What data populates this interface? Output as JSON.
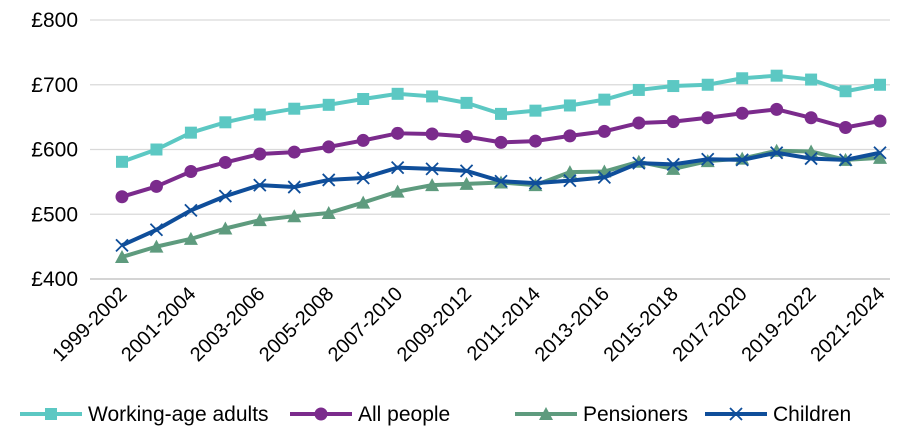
{
  "chart_data": {
    "type": "line",
    "title": "",
    "xlabel": "",
    "ylabel": "",
    "ylim": [
      400,
      800
    ],
    "yticks": [
      "£400",
      "£500",
      "£600",
      "£700",
      "£800"
    ],
    "grid": true,
    "legend_position": "bottom",
    "x": [
      "1999-2002",
      "2000-2003",
      "2001-2004",
      "2002-2005",
      "2003-2006",
      "2004-2007",
      "2005-2008",
      "2006-2009",
      "2007-2010",
      "2008-2011",
      "2009-2012",
      "2010-2013",
      "2011-2014",
      "2012-2015",
      "2013-2016",
      "2014-2017",
      "2015-2018",
      "2016-2019",
      "2017-2020",
      "2018-2021",
      "2019-2022",
      "2020-2023",
      "2021-2024"
    ],
    "x_tick_labels": [
      "1999-2002",
      "",
      "2001-2004",
      "",
      "2003-2006",
      "",
      "2005-2008",
      "",
      "2007-2010",
      "",
      "2009-2012",
      "",
      "2011-2014",
      "",
      "2013-2016",
      "",
      "2015-2018",
      "",
      "2017-2020",
      "",
      "2019-2022",
      "",
      "2021-2024"
    ],
    "series": [
      {
        "name": "Working-age adults",
        "color": "#5cc8c3",
        "marker": "square",
        "values": [
          581,
          600,
          626,
          642,
          654,
          663,
          669,
          678,
          686,
          682,
          672,
          655,
          660,
          668,
          677,
          692,
          698,
          700,
          710,
          714,
          708,
          690,
          700
        ]
      },
      {
        "name": "All people",
        "color": "#7b2b8c",
        "marker": "circle",
        "values": [
          527,
          543,
          566,
          580,
          593,
          596,
          604,
          614,
          625,
          624,
          620,
          611,
          613,
          621,
          628,
          641,
          643,
          649,
          656,
          662,
          649,
          634,
          644
        ]
      },
      {
        "name": "Pensioners",
        "color": "#5e9b7e",
        "marker": "triangle",
        "values": [
          434,
          450,
          462,
          478,
          491,
          497,
          502,
          518,
          535,
          545,
          547,
          549,
          545,
          565,
          566,
          581,
          570,
          582,
          586,
          598,
          597,
          584,
          587
        ]
      },
      {
        "name": "Children",
        "color": "#0f4e9a",
        "marker": "x",
        "values": [
          452,
          476,
          506,
          528,
          545,
          542,
          553,
          556,
          572,
          570,
          567,
          551,
          548,
          552,
          557,
          579,
          577,
          585,
          584,
          595,
          586,
          584,
          595
        ]
      }
    ]
  }
}
